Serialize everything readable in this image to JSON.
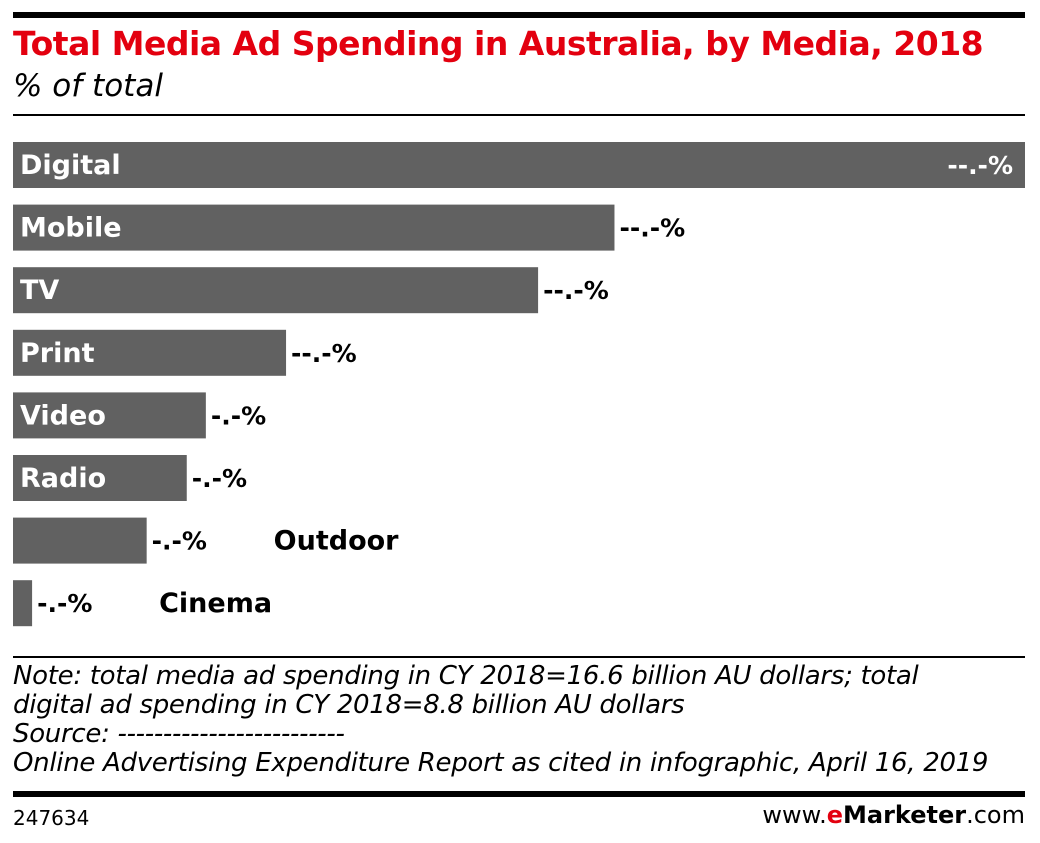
{
  "header": {
    "title": "Total Media Ad Spending in Australia, by Media, 2018",
    "subtitle": "% of total"
  },
  "chart_data": {
    "type": "bar",
    "orientation": "horizontal",
    "title": "Total Media Ad Spending in Australia, by Media, 2018",
    "subtitle": "% of total",
    "categories": [
      "Digital",
      "Mobile",
      "TV",
      "Print",
      "Video",
      "Radio",
      "Outdoor",
      "Cinema"
    ],
    "values": [
      53.0,
      31.5,
      27.5,
      14.3,
      10.1,
      9.1,
      7.0,
      1.0
    ],
    "value_labels": [
      "--.-%",
      "--.-%",
      "--.-%",
      "--.-%",
      "-.-%",
      "-.-%",
      "-.-%",
      "-.-%"
    ],
    "bar_color": "#616161",
    "grid": false,
    "legend": "none"
  },
  "footer": {
    "note_lines": [
      "Note: total media ad spending in CY 2018=16.6 billion AU dollars; total",
      "digital ad spending in CY 2018=8.8 billion AU dollars",
      "Source: -------------------------",
      "Online Advertising Expenditure Report as cited in infographic, April 16, 2019"
    ],
    "chart_id": "247634",
    "brand_prefix": "www.",
    "brand_e": "e",
    "brand_name": "Marketer",
    "brand_suffix": ".com"
  },
  "colors": {
    "title": "#e3000f",
    "bar": "#616161",
    "rule": "#000000"
  }
}
